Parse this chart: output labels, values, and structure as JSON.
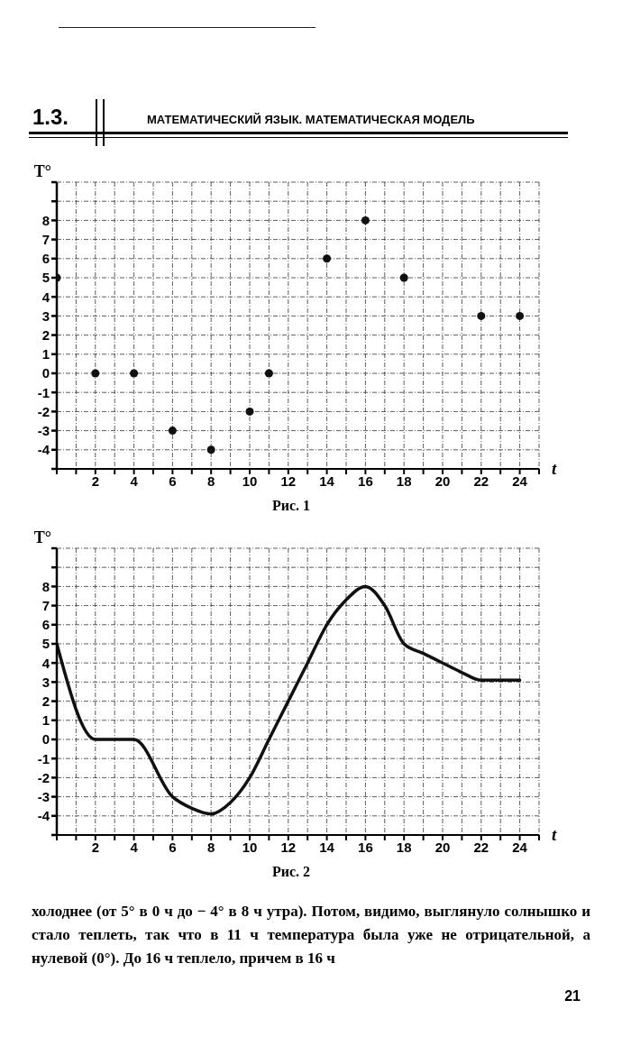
{
  "chart_data": [
    {
      "type": "scatter",
      "xlabel": "t",
      "ylabel": "T°",
      "x": [
        0,
        2,
        4,
        6,
        8,
        10,
        11,
        14,
        16,
        18,
        22,
        24
      ],
      "series": [
        {
          "color": "#111111",
          "values": [
            5,
            0,
            0,
            -3,
            -4,
            -2,
            0,
            6,
            8,
            5,
            3,
            3
          ]
        }
      ],
      "marker": "circle",
      "xlim": [
        0,
        25
      ],
      "xticks": [
        {
          "value": 0,
          "label": null
        },
        {
          "value": 1,
          "label": null
        },
        2,
        {
          "value": 3,
          "label": null
        },
        4,
        {
          "value": 5,
          "label": null
        },
        6,
        {
          "value": 7,
          "label": null
        },
        8,
        {
          "value": 9,
          "label": null
        },
        10,
        {
          "value": 11,
          "label": null
        },
        12,
        {
          "value": 13,
          "label": null
        },
        14,
        {
          "value": 15,
          "label": null
        },
        16,
        {
          "value": 17,
          "label": null
        },
        18,
        {
          "value": 19,
          "label": null
        },
        20,
        {
          "value": 21,
          "label": null
        },
        22,
        {
          "value": 23,
          "label": null
        },
        24,
        {
          "value": 25,
          "label": null
        }
      ],
      "ylim": [
        -5,
        10
      ],
      "yticks": [
        {
          "value": -5,
          "label": null
        },
        -4,
        -3,
        -2,
        -1,
        0,
        1,
        2,
        3,
        4,
        5,
        6,
        7,
        8,
        {
          "value": 9,
          "label": null
        },
        {
          "value": 10,
          "label": null
        }
      ],
      "grid": true,
      "annotations": [
        "1.3.",
        "МАТЕМАТИЧЕСКИЙ ЯЗЫК. МАТЕМАТИЧЕСКАЯ МОДЕЛЬ",
        "Рис. 1"
      ]
    },
    {
      "type": "line",
      "xlabel": "t",
      "ylabel": "T°",
      "x": [
        0,
        2,
        4,
        6,
        7,
        8,
        9,
        10,
        11,
        12,
        13,
        14,
        15,
        16,
        17,
        18,
        19,
        20,
        21,
        22,
        24
      ],
      "series": [
        {
          "color": "#111111",
          "values": [
            5,
            0,
            0,
            -3,
            -3.6,
            -3.9,
            -3.3,
            -2,
            0,
            2,
            4,
            6,
            7.3,
            8,
            7,
            5,
            4.5,
            4,
            3.5,
            3.1,
            3.1
          ]
        }
      ],
      "marker": "none",
      "line_style": "solid",
      "xlim": [
        0,
        25
      ],
      "xticks": [
        {
          "value": 0,
          "label": null
        },
        {
          "value": 1,
          "label": null
        },
        2,
        {
          "value": 3,
          "label": null
        },
        4,
        {
          "value": 5,
          "label": null
        },
        6,
        {
          "value": 7,
          "label": null
        },
        8,
        {
          "value": 9,
          "label": null
        },
        10,
        {
          "value": 11,
          "label": null
        },
        12,
        {
          "value": 13,
          "label": null
        },
        14,
        {
          "value": 15,
          "label": null
        },
        16,
        {
          "value": 17,
          "label": null
        },
        18,
        {
          "value": 19,
          "label": null
        },
        20,
        {
          "value": 21,
          "label": null
        },
        22,
        {
          "value": 23,
          "label": null
        },
        24,
        {
          "value": 25,
          "label": null
        }
      ],
      "ylim": [
        -5,
        10
      ],
      "yticks": [
        {
          "value": -5,
          "label": null
        },
        -4,
        -3,
        -2,
        -1,
        0,
        1,
        2,
        3,
        4,
        5,
        6,
        7,
        8,
        {
          "value": 9,
          "label": null
        },
        {
          "value": 10,
          "label": null
        }
      ],
      "grid": true,
      "annotations": [
        "Рис. 2",
        "холоднее (от 5° в 0 ч до − 4° в 8 ч утра). Потом, видимо, выглянуло солнышко и стало теплеть, так что в 11 ч температура была уже не отрицательной, а нулевой (0°). До 16 ч теплело, причем в 16 ч",
        "21"
      ]
    }
  ]
}
